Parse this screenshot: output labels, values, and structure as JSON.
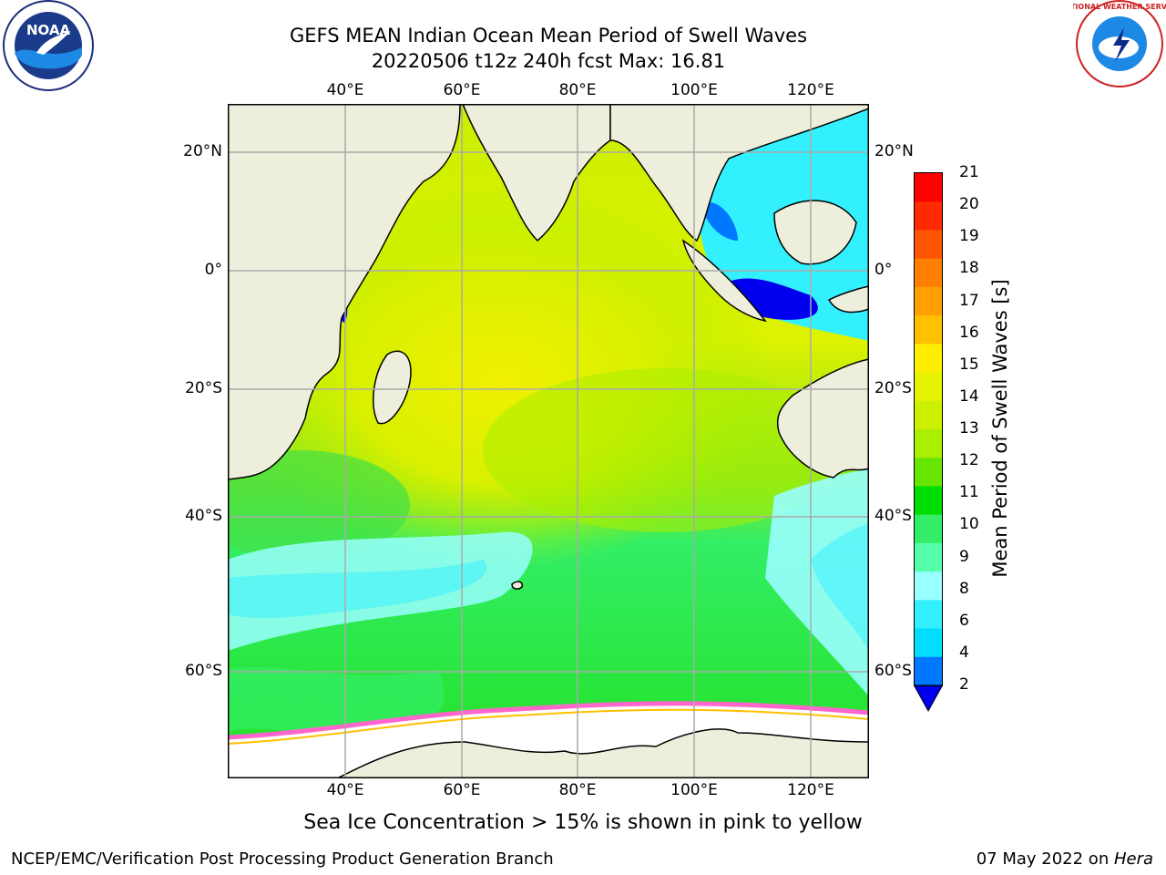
{
  "header": {
    "title_line1": "GEFS MEAN Indian Ocean Mean Period of Swell Waves",
    "title_line2": "20220506 t12z 240h fcst   Max: 16.81"
  },
  "map": {
    "lon_labels": [
      "40°E",
      "60°E",
      "80°E",
      "100°E",
      "120°E"
    ],
    "lat_labels": [
      "20°N",
      "0°",
      "20°S",
      "40°S",
      "60°S"
    ],
    "colors": {
      "land": "#eeeedd",
      "sea_ice": "#ffffff",
      "ice_edge": "#ff66cc",
      "grid": "#aaaaaa",
      "coast": "#000000"
    }
  },
  "colorbar": {
    "label": "Mean Period of Swell Waves [s]",
    "ticks": [
      "21",
      "20",
      "19",
      "18",
      "17",
      "16",
      "15",
      "14",
      "13",
      "12",
      "11",
      "10",
      "9",
      "8",
      "6",
      "4",
      "2"
    ],
    "bands": [
      "#ff0000",
      "#ff2a00",
      "#ff5500",
      "#ff7f00",
      "#ff9f00",
      "#ffc000",
      "#ffee00",
      "#e6f200",
      "#ccf000",
      "#aaee00",
      "#66e600",
      "#00dd00",
      "#33ee66",
      "#55ffaa",
      "#99ffff",
      "#33f0ff",
      "#00ddff",
      "#0077ff"
    ],
    "extend_color": "#0000ee"
  },
  "footer": {
    "note": "Sea Ice Concentration > 15% is shown in pink to yellow",
    "credit": "NCEP/EMC/Verification Post Processing Product Generation Branch",
    "date": "07 May 2022 on ",
    "host": "Hera"
  },
  "logos": {
    "left_text": "NOAA",
    "right_text": "NATIONAL WEATHER SERVICE"
  }
}
